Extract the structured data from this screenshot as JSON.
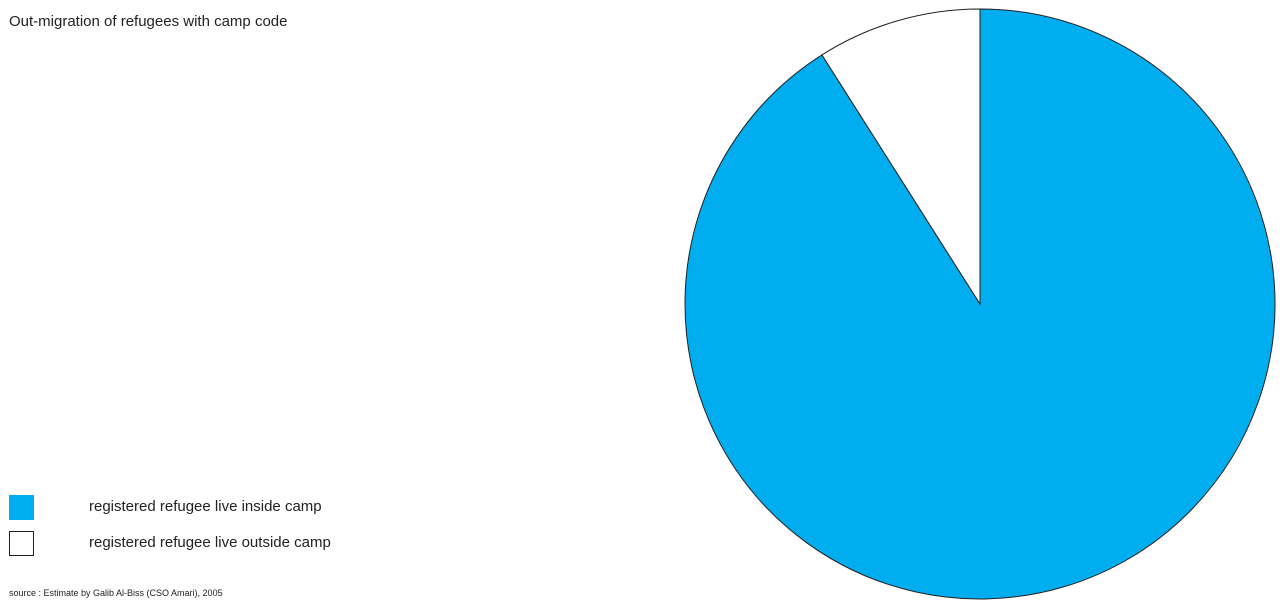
{
  "chart_data": {
    "type": "pie",
    "title": "Out-migration of refugees with camp code",
    "slices": [
      {
        "label": "registered refugee live inside camp",
        "value": 91,
        "color": "#00aeef"
      },
      {
        "label": "registered refugee live outside camp",
        "value": 9,
        "color": "#ffffff"
      }
    ],
    "start_angle_deg": 0,
    "direction": "clockwise",
    "legend_position": "bottom-left",
    "stroke_color": "#231f20",
    "source": "source : Estimate by Galib Al-Biss (CSO Amari), 2005"
  }
}
